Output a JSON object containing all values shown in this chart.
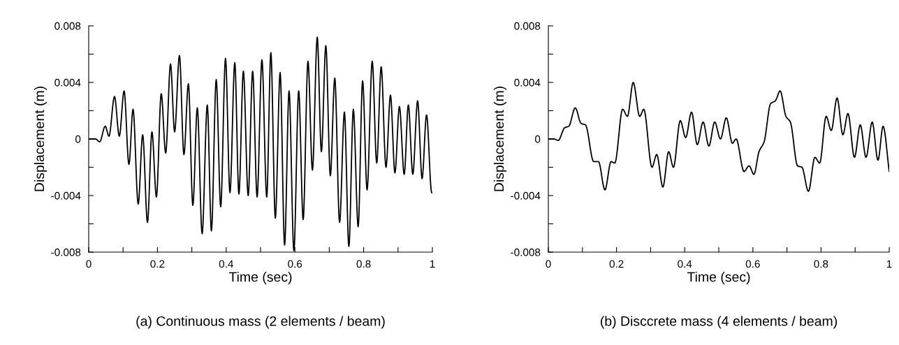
{
  "chart_data": [
    {
      "type": "line",
      "xlabel": "Time (sec)",
      "ylabel": "Displacement (m)",
      "annotations": [
        "(a) Continuous mass (2 elements / beam)"
      ],
      "xlim": [
        0,
        1
      ],
      "ylim": [
        -0.008,
        0.008
      ],
      "xticks": [
        {
          "value": 0,
          "label": "0"
        },
        {
          "value": 0.1,
          "label": null
        },
        {
          "value": 0.2,
          "label": "0.2"
        },
        {
          "value": 0.3,
          "label": null
        },
        {
          "value": 0.4,
          "label": "0.4"
        },
        {
          "value": 0.5,
          "label": null
        },
        {
          "value": 0.6,
          "label": "0.6"
        },
        {
          "value": 0.7,
          "label": null
        },
        {
          "value": 0.8,
          "label": "0.8"
        },
        {
          "value": 0.9,
          "label": null
        },
        {
          "value": 1,
          "label": "1"
        }
      ],
      "yticks": [
        {
          "value": -0.008,
          "label": "-0.008"
        },
        {
          "value": -0.006,
          "label": null
        },
        {
          "value": -0.004,
          "label": "-0.004"
        },
        {
          "value": -0.002,
          "label": null
        },
        {
          "value": 0,
          "label": "0"
        },
        {
          "value": 0.002,
          "label": null
        },
        {
          "value": 0.004,
          "label": "0.004"
        },
        {
          "value": 0.006,
          "label": null
        },
        {
          "value": 0.008,
          "label": "0.008"
        }
      ],
      "grid": false,
      "legend": false,
      "marker": "none",
      "line_style": "solid",
      "series": [
        {
          "color": "#000000",
          "x": [
            0,
            0.02,
            0.032,
            0.048,
            0.059,
            0.075,
            0.089,
            0.103,
            0.117,
            0.129,
            0.144,
            0.157,
            0.171,
            0.184,
            0.197,
            0.211,
            0.224,
            0.238,
            0.25,
            0.264,
            0.277,
            0.29,
            0.303,
            0.316,
            0.33,
            0.345,
            0.357,
            0.371,
            0.384,
            0.398,
            0.411,
            0.425,
            0.437,
            0.45,
            0.464,
            0.477,
            0.49,
            0.504,
            0.518,
            0.53,
            0.543,
            0.557,
            0.57,
            0.583,
            0.597,
            0.611,
            0.624,
            0.638,
            0.651,
            0.665,
            0.677,
            0.69,
            0.703,
            0.716,
            0.73,
            0.744,
            0.757,
            0.77,
            0.784,
            0.797,
            0.81,
            0.825,
            0.838,
            0.851,
            0.865,
            0.878,
            0.891,
            0.904,
            0.918,
            0.93,
            0.943,
            0.957,
            0.97,
            0.983,
            0.998,
            1
          ],
          "values": [
            0,
            0,
            -0.0002,
            0.0009,
            0.0002,
            0.003,
            0.0002,
            0.0034,
            -0.0018,
            0.0021,
            -0.0046,
            0.0003,
            -0.0059,
            0.0005,
            -0.0041,
            0.0032,
            -0.001,
            0.0053,
            0.0005,
            0.0059,
            -0.0011,
            0.0039,
            -0.0047,
            0.0022,
            -0.0067,
            0.0024,
            -0.0065,
            0.0042,
            -0.0048,
            0.0057,
            -0.0038,
            0.0054,
            -0.0039,
            0.0048,
            -0.004,
            0.0048,
            -0.0041,
            0.0056,
            -0.0041,
            0.0061,
            -0.0056,
            0.0047,
            -0.0075,
            0.0034,
            -0.0079,
            0.0034,
            -0.0057,
            0.0055,
            -0.0022,
            0.0072,
            -0.0009,
            0.0066,
            -0.0026,
            0.0043,
            -0.0059,
            0.0019,
            -0.0076,
            0.0021,
            -0.0062,
            0.0041,
            -0.0036,
            0.0055,
            -0.0017,
            0.0051,
            -0.002,
            0.0031,
            -0.0024,
            0.0023,
            -0.0025,
            0.0024,
            -0.0025,
            0.0027,
            -0.0028,
            0.0017,
            -0.0038,
            -0.0038
          ]
        }
      ]
    },
    {
      "type": "line",
      "xlabel": "Time (sec)",
      "ylabel": "Displacement (m)",
      "annotations": [
        "(b) Disccrete mass (4 elements / beam)"
      ],
      "xlim": [
        0,
        1
      ],
      "ylim": [
        -0.008,
        0.008
      ],
      "xticks": [
        {
          "value": 0,
          "label": "0"
        },
        {
          "value": 0.1,
          "label": null
        },
        {
          "value": 0.2,
          "label": "0.2"
        },
        {
          "value": 0.3,
          "label": null
        },
        {
          "value": 0.4,
          "label": "0.4"
        },
        {
          "value": 0.5,
          "label": null
        },
        {
          "value": 0.6,
          "label": "0.6"
        },
        {
          "value": 0.7,
          "label": null
        },
        {
          "value": 0.8,
          "label": "0.8"
        },
        {
          "value": 0.9,
          "label": null
        },
        {
          "value": 1,
          "label": "1"
        }
      ],
      "yticks": [
        {
          "value": -0.008,
          "label": "-0.008"
        },
        {
          "value": -0.006,
          "label": null
        },
        {
          "value": -0.004,
          "label": "-0.004"
        },
        {
          "value": -0.002,
          "label": null
        },
        {
          "value": 0,
          "label": "0"
        },
        {
          "value": 0.002,
          "label": null
        },
        {
          "value": 0.004,
          "label": "0.004"
        },
        {
          "value": 0.006,
          "label": null
        },
        {
          "value": 0.008,
          "label": "0.008"
        }
      ],
      "grid": false,
      "legend": false,
      "marker": "none",
      "line_style": "solid",
      "series": [
        {
          "color": "#000000",
          "x": [
            0,
            0.017,
            0.029,
            0.048,
            0.06,
            0.079,
            0.096,
            0.109,
            0.133,
            0.147,
            0.166,
            0.184,
            0.195,
            0.218,
            0.232,
            0.249,
            0.268,
            0.28,
            0.304,
            0.318,
            0.336,
            0.353,
            0.367,
            0.387,
            0.403,
            0.42,
            0.437,
            0.454,
            0.471,
            0.488,
            0.505,
            0.522,
            0.54,
            0.551,
            0.574,
            0.589,
            0.603,
            0.618,
            0.633,
            0.652,
            0.666,
            0.68,
            0.697,
            0.71,
            0.731,
            0.744,
            0.763,
            0.782,
            0.796,
            0.815,
            0.83,
            0.847,
            0.864,
            0.879,
            0.898,
            0.915,
            0.932,
            0.95,
            0.967,
            0.982,
            1
          ],
          "values": [
            0,
            0,
            -0.0001,
            0.0008,
            0.0009,
            0.0022,
            0.0011,
            0.001,
            -0.0016,
            -0.0016,
            -0.0036,
            -0.0016,
            -0.0017,
            0.0021,
            0.0016,
            0.004,
            0.0016,
            0.0021,
            -0.002,
            -0.0011,
            -0.0034,
            -0.0009,
            -0.002,
            0.0013,
            0.0001,
            0.0019,
            -0.0004,
            0.0012,
            -0.0005,
            0.0012,
            0,
            0.0015,
            -0.0003,
            0,
            -0.0023,
            -0.0019,
            -0.0025,
            -0.0009,
            -0.0002,
            0.0025,
            0.0027,
            0.0034,
            0.0016,
            0.0012,
            -0.0019,
            -0.002,
            -0.0037,
            -0.0013,
            -0.0017,
            0.0016,
            0.0006,
            0.0029,
            0.0003,
            0.0018,
            -0.0013,
            0.001,
            -0.0013,
            0.0012,
            -0.0015,
            0.0009,
            -0.0023
          ]
        }
      ]
    }
  ]
}
